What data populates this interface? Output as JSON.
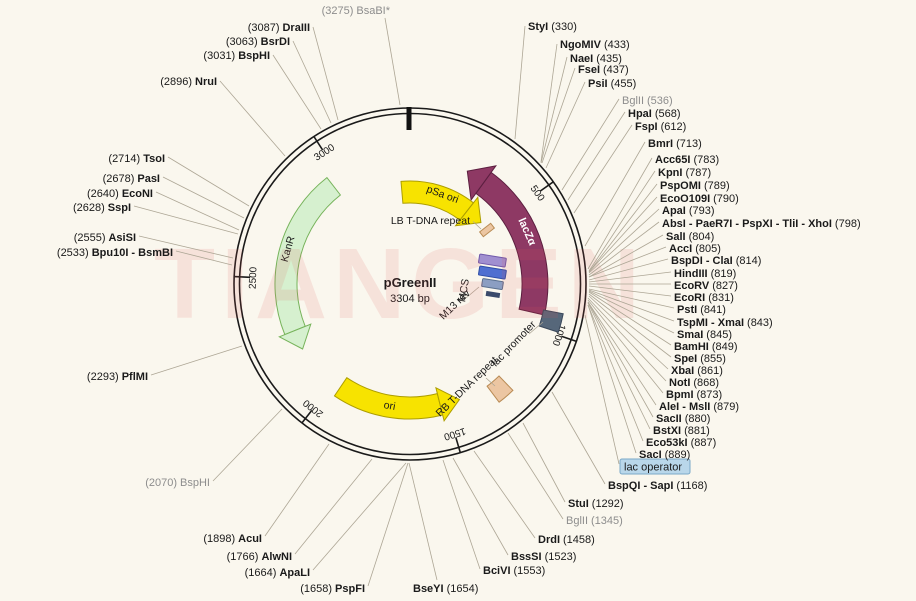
{
  "plasmid": {
    "name": "pGreenII",
    "size": "3304 bp"
  },
  "watermark": "TIANGEN",
  "positions": [
    "500",
    "1000",
    "1500",
    "2000",
    "2500",
    "3000"
  ],
  "features": {
    "psa_ori": {
      "label": "pSa ori",
      "color": "#f7e300"
    },
    "lb_tdna": {
      "label": "LB T-DNA repeat",
      "color": "#ecc6a2"
    },
    "lacza": {
      "label": "lacZα",
      "color": "#8e3964"
    },
    "mcs": {
      "label": "MCS",
      "color": "#4f6fd0"
    },
    "m13_rev": {
      "label": "M13 rev",
      "color": "#a08fd0"
    },
    "lac_promoter": {
      "label": "lac promoter",
      "color": "#56677a"
    },
    "lac_operator": {
      "label": "lac operator",
      "color": "#b9d7ea"
    },
    "rb_tdna": {
      "label": "RB T-DNA repeat",
      "color": "#ecc6a2"
    },
    "ori": {
      "label": "ori",
      "color": "#f7e300"
    },
    "kanr": {
      "label": "KanR",
      "color": "#d6f0cf"
    }
  },
  "sites": {
    "left": [
      {
        "pos": "(3275)",
        "name": "BsaBI*",
        "gray": true
      },
      {
        "pos": "(3087)",
        "name": "DraIII"
      },
      {
        "pos": "(3063)",
        "name": "BsrDI"
      },
      {
        "pos": "(3031)",
        "name": "BspHI"
      },
      {
        "pos": "(2896)",
        "name": "NruI"
      },
      {
        "pos": "(2714)",
        "name": "TsoI"
      },
      {
        "pos": "(2678)",
        "name": "PasI"
      },
      {
        "pos": "(2640)",
        "name": "EcoNI"
      },
      {
        "pos": "(2628)",
        "name": "SspI"
      },
      {
        "pos": "(2555)",
        "name": "AsiSI"
      },
      {
        "pos": "(2533)",
        "name": "Bpu10I - BsmBI"
      },
      {
        "pos": "(2293)",
        "name": "PflMI"
      },
      {
        "pos": "(2070)",
        "name": "BspHI",
        "gray": true
      },
      {
        "pos": "(1898)",
        "name": "AcuI"
      },
      {
        "pos": "(1766)",
        "name": "AlwNI"
      },
      {
        "pos": "(1664)",
        "name": "ApaLI"
      },
      {
        "pos": "(1658)",
        "name": "PspFI"
      }
    ],
    "right": [
      {
        "name": "StyI",
        "pos": "(330)"
      },
      {
        "name": "NgoMIV",
        "pos": "(433)"
      },
      {
        "name": "NaeI",
        "pos": "(435)"
      },
      {
        "name": "FseI",
        "pos": "(437)"
      },
      {
        "name": "PsiI",
        "pos": "(455)"
      },
      {
        "name": "BglII",
        "pos": "(536)",
        "gray": true
      },
      {
        "name": "HpaI",
        "pos": "(568)"
      },
      {
        "name": "FspI",
        "pos": "(612)"
      },
      {
        "name": "BmrI",
        "pos": "(713)"
      },
      {
        "name": "Acc65I",
        "pos": "(783)"
      },
      {
        "name": "KpnI",
        "pos": "(787)"
      },
      {
        "name": "PspOMI",
        "pos": "(789)"
      },
      {
        "name": "EcoO109I",
        "pos": "(790)"
      },
      {
        "name": "ApaI",
        "pos": "(793)"
      },
      {
        "name": "AbsI - PaeR7I - PspXI - TliI - XhoI",
        "pos": "(798)"
      },
      {
        "name": "SalI",
        "pos": "(804)"
      },
      {
        "name": "AccI",
        "pos": "(805)"
      },
      {
        "name": "BspDI - ClaI",
        "pos": "(814)"
      },
      {
        "name": "HindIII",
        "pos": "(819)"
      },
      {
        "name": "EcoRV",
        "pos": "(827)"
      },
      {
        "name": "EcoRI",
        "pos": "(831)"
      },
      {
        "name": "PstI",
        "pos": "(841)"
      },
      {
        "name": "TspMI - XmaI",
        "pos": "(843)"
      },
      {
        "name": "SmaI",
        "pos": "(845)"
      },
      {
        "name": "BamHI",
        "pos": "(849)"
      },
      {
        "name": "SpeI",
        "pos": "(855)"
      },
      {
        "name": "XbaI",
        "pos": "(861)"
      },
      {
        "name": "NotI",
        "pos": "(868)"
      },
      {
        "name": "BpmI",
        "pos": "(873)"
      },
      {
        "name": "AleI - MslI",
        "pos": "(879)"
      },
      {
        "name": "SacII",
        "pos": "(880)"
      },
      {
        "name": "BstXI",
        "pos": "(881)"
      },
      {
        "name": "Eco53kI",
        "pos": "(887)"
      },
      {
        "name": "SacI",
        "pos": "(889)"
      },
      {
        "name": "BspQI - SapI",
        "pos": "(1168)"
      },
      {
        "name": "StuI",
        "pos": "(1292)"
      },
      {
        "name": "BglII",
        "pos": "(1345)",
        "gray": true
      },
      {
        "name": "DrdI",
        "pos": "(1458)"
      },
      {
        "name": "BssSI",
        "pos": "(1523)"
      },
      {
        "name": "BciVI",
        "pos": "(1553)"
      },
      {
        "name": "BseYI",
        "pos": "(1654)"
      }
    ]
  }
}
